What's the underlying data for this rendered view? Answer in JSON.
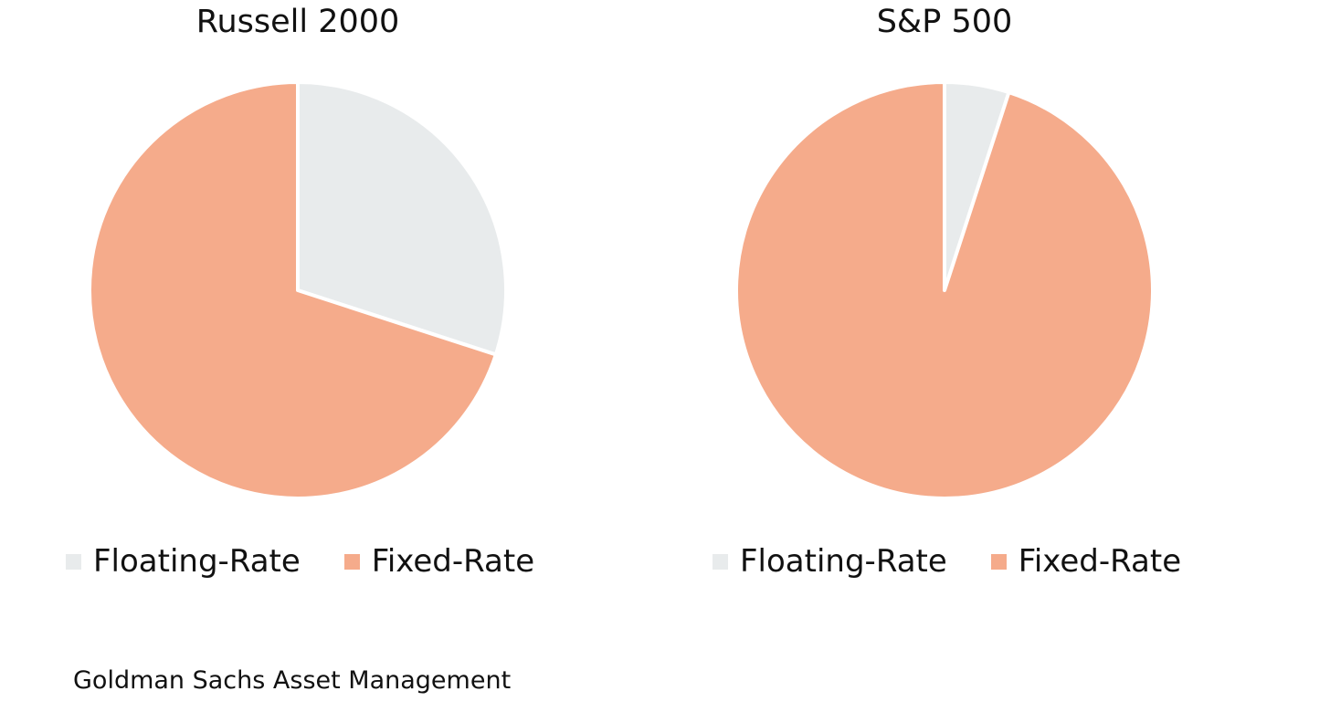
{
  "colors": {
    "floating": "#e8ebec",
    "fixed": "#f5ab8b",
    "separator": "#ffffff"
  },
  "chart_data": [
    {
      "type": "pie",
      "title": "Russell 2000",
      "categories": [
        "Floating-Rate",
        "Fixed-Rate"
      ],
      "values": [
        30,
        70
      ],
      "start_angle_deg": 0,
      "direction": "clockwise",
      "legend_position": "bottom-left"
    },
    {
      "type": "pie",
      "title": "S&P 500",
      "categories": [
        "Floating-Rate",
        "Fixed-Rate"
      ],
      "values": [
        5,
        95
      ],
      "start_angle_deg": 0,
      "direction": "clockwise",
      "legend_position": "bottom-left"
    }
  ],
  "footer": {
    "source": "Goldman Sachs Asset Management"
  }
}
